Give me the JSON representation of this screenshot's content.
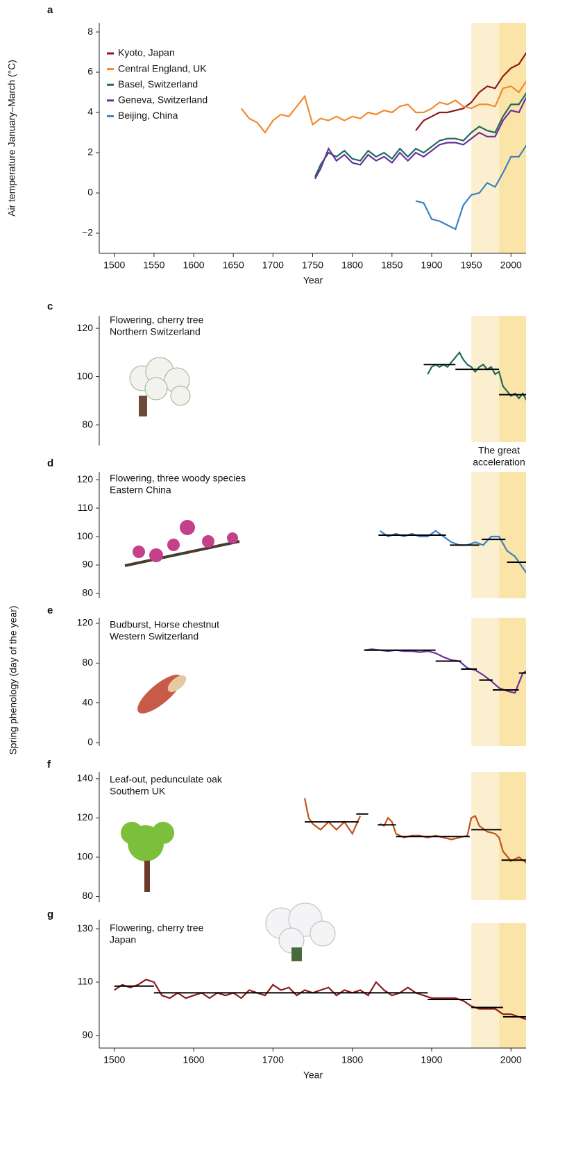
{
  "ylabel": "Spring phenology (day of the year)",
  "chart_data": [
    {
      "type": "line",
      "label": "a",
      "xlabel": "Year",
      "ylabel": "Air temperature January–March (°C)",
      "xlim": [
        1481,
        2019
      ],
      "ylim": [
        -3,
        8.45
      ],
      "xticks": [
        1500,
        1550,
        1600,
        1650,
        1700,
        1750,
        1800,
        1850,
        1900,
        1950,
        2000
      ],
      "yticks": [
        {
          "value": -2,
          "label": "−2"
        },
        0,
        2,
        4,
        6,
        8
      ],
      "periods": [
        {
          "range": [
            1950,
            1985
          ],
          "color": "#fcefcf"
        },
        {
          "range": [
            1985,
            2020
          ],
          "color": "#fbe4a8"
        }
      ],
      "series": [
        {
          "name": "Kyoto, Japan",
          "color": "#8b1a1a",
          "x": [
            1880,
            1890,
            1900,
            1910,
            1920,
            1930,
            1940,
            1950,
            1960,
            1970,
            1980,
            1990,
            2000,
            2010,
            2020
          ],
          "values": [
            3.1,
            3.6,
            3.8,
            4.0,
            4.0,
            4.1,
            4.2,
            4.5,
            5.0,
            5.3,
            5.2,
            5.8,
            6.2,
            6.4,
            7.0
          ]
        },
        {
          "name": "Central England, UK",
          "color": "#f28a2e",
          "x": [
            1660,
            1670,
            1680,
            1690,
            1700,
            1710,
            1720,
            1730,
            1740,
            1750,
            1760,
            1770,
            1780,
            1790,
            1800,
            1810,
            1820,
            1830,
            1840,
            1850,
            1860,
            1870,
            1880,
            1890,
            1900,
            1910,
            1920,
            1930,
            1940,
            1950,
            1960,
            1970,
            1980,
            1990,
            2000,
            2010,
            2020
          ],
          "values": [
            4.2,
            3.7,
            3.5,
            3.0,
            3.6,
            3.9,
            3.8,
            4.3,
            4.8,
            3.4,
            3.7,
            3.6,
            3.8,
            3.6,
            3.8,
            3.7,
            4.0,
            3.9,
            4.1,
            4.0,
            4.3,
            4.4,
            4.0,
            4.0,
            4.2,
            4.5,
            4.4,
            4.6,
            4.3,
            4.2,
            4.4,
            4.4,
            4.3,
            5.2,
            5.3,
            5.0,
            5.6
          ]
        },
        {
          "name": "Basel, Switzerland",
          "color": "#1e6b5a",
          "x": [
            1753,
            1760,
            1770,
            1780,
            1790,
            1800,
            1810,
            1820,
            1830,
            1840,
            1850,
            1860,
            1870,
            1880,
            1890,
            1900,
            1910,
            1920,
            1930,
            1940,
            1950,
            1960,
            1970,
            1980,
            1990,
            2000,
            2010,
            2020
          ],
          "values": [
            0.8,
            1.4,
            2.0,
            1.8,
            2.1,
            1.7,
            1.6,
            2.1,
            1.8,
            2.0,
            1.7,
            2.2,
            1.8,
            2.2,
            2.0,
            2.3,
            2.6,
            2.7,
            2.7,
            2.6,
            3.0,
            3.3,
            3.1,
            3.0,
            3.8,
            4.4,
            4.4,
            5.0
          ]
        },
        {
          "name": "Geneva, Switzerland",
          "color": "#6a2fa0",
          "x": [
            1753,
            1760,
            1770,
            1780,
            1790,
            1800,
            1810,
            1820,
            1830,
            1840,
            1850,
            1860,
            1870,
            1880,
            1890,
            1900,
            1910,
            1920,
            1930,
            1940,
            1950,
            1960,
            1970,
            1980,
            1990,
            2000,
            2010,
            2020
          ],
          "values": [
            0.7,
            1.2,
            2.2,
            1.6,
            1.9,
            1.5,
            1.4,
            1.9,
            1.6,
            1.8,
            1.5,
            2.0,
            1.6,
            2.0,
            1.8,
            2.1,
            2.4,
            2.5,
            2.5,
            2.4,
            2.7,
            3.0,
            2.8,
            2.8,
            3.6,
            4.1,
            4.0,
            4.8
          ]
        },
        {
          "name": "Beijing, China",
          "color": "#3a82c4",
          "x": [
            1880,
            1890,
            1900,
            1910,
            1920,
            1930,
            1940,
            1950,
            1960,
            1970,
            1980,
            1990,
            2000,
            2010,
            2020
          ],
          "values": [
            -0.4,
            -0.5,
            -1.3,
            -1.4,
            -1.6,
            -1.8,
            -0.6,
            -0.1,
            0.0,
            0.5,
            0.3,
            1.0,
            1.8,
            1.8,
            2.4
          ]
        }
      ]
    },
    {
      "type": "line",
      "label": "c",
      "title": [
        "Flowering, cherry tree",
        "Northern Switzerland"
      ],
      "annotation": [
        "The great",
        "acceleration"
      ],
      "xlim": [
        1481,
        2019
      ],
      "ylim": [
        71.4,
        125.2
      ],
      "yticks": [
        80,
        100,
        120
      ],
      "periods": [
        {
          "range": [
            1950,
            1985
          ],
          "color": "#fcefcf"
        },
        {
          "range": [
            1985,
            2020
          ],
          "color": "#fbe4a8"
        }
      ],
      "series": [
        {
          "color": "#1e6b5a",
          "x": [
            1895,
            1900,
            1905,
            1910,
            1915,
            1920,
            1925,
            1930,
            1935,
            1940,
            1945,
            1950,
            1955,
            1960,
            1965,
            1970,
            1975,
            1980,
            1985,
            1990,
            1995,
            2000,
            2005,
            2010,
            2015,
            2020
          ],
          "values": [
            101,
            104,
            105,
            104,
            105,
            104,
            106,
            108,
            110,
            107,
            105,
            104,
            102,
            104,
            105,
            103,
            104,
            101,
            102,
            96,
            94,
            92,
            93,
            91,
            93,
            90
          ]
        }
      ],
      "means": [
        {
          "x": [
            1890,
            1930
          ],
          "value": 105
        },
        {
          "x": [
            1930,
            1985
          ],
          "value": 103
        },
        {
          "x": [
            1985,
            2020
          ],
          "value": 92.5
        }
      ]
    },
    {
      "type": "line",
      "label": "d",
      "title": [
        "Flowering, three woody species",
        "Eastern China"
      ],
      "xlim": [
        1481,
        2019
      ],
      "ylim": [
        78.3,
        122.7
      ],
      "yticks": [
        80,
        90,
        100,
        110,
        120
      ],
      "periods": [
        {
          "range": [
            1950,
            1985
          ],
          "color": "#fcefcf"
        },
        {
          "range": [
            1985,
            2020
          ],
          "color": "#fbe4a8"
        }
      ],
      "series": [
        {
          "color": "#3a82c4",
          "x": [
            1835,
            1845,
            1855,
            1865,
            1875,
            1885,
            1895,
            1905,
            1915,
            1925,
            1935,
            1945,
            1955,
            1965,
            1975,
            1985,
            1995,
            2005,
            2015,
            2020
          ],
          "values": [
            102,
            100,
            101,
            100,
            101,
            100,
            100,
            102,
            100,
            98,
            97,
            97,
            98,
            97,
            100,
            100,
            95,
            93,
            89,
            87
          ]
        }
      ],
      "means": [
        {
          "x": [
            1833,
            1918
          ],
          "value": 100.5
        },
        {
          "x": [
            1923,
            1960
          ],
          "value": 97
        },
        {
          "x": [
            1963,
            1993
          ],
          "value": 99
        },
        {
          "x": [
            1995,
            2020
          ],
          "value": 91
        }
      ]
    },
    {
      "type": "line",
      "label": "e",
      "title": [
        "Budburst, Horse chestnut",
        "Western Switzerland"
      ],
      "xlim": [
        1481,
        2019
      ],
      "ylim": [
        -3.5,
        125.6
      ],
      "yticks": [
        0,
        40,
        80,
        120
      ],
      "periods": [
        {
          "range": [
            1950,
            1985
          ],
          "color": "#fcefcf"
        },
        {
          "range": [
            1985,
            2020
          ],
          "color": "#fbe4a8"
        }
      ],
      "series": [
        {
          "color": "#6a2fa0",
          "x": [
            1815,
            1825,
            1835,
            1845,
            1855,
            1865,
            1875,
            1885,
            1895,
            1905,
            1915,
            1925,
            1935,
            1945,
            1955,
            1965,
            1975,
            1985,
            1995,
            2005,
            2015,
            2020
          ],
          "values": [
            93,
            94,
            93,
            92,
            93,
            92,
            92,
            91,
            92,
            90,
            86,
            83,
            82,
            75,
            73,
            68,
            62,
            55,
            52,
            50,
            70,
            72
          ]
        }
      ],
      "means": [
        {
          "x": [
            1815,
            1905
          ],
          "value": 93
        },
        {
          "x": [
            1905,
            1937
          ],
          "value": 82
        },
        {
          "x": [
            1937,
            1957
          ],
          "value": 74
        },
        {
          "x": [
            1960,
            1977
          ],
          "value": 63
        },
        {
          "x": [
            1977,
            2010
          ],
          "value": 53
        },
        {
          "x": [
            2010,
            2020
          ],
          "value": 70
        }
      ]
    },
    {
      "type": "line",
      "label": "f",
      "title": [
        "Leaf-out, pedunculate oak",
        "Southern UK"
      ],
      "xlim": [
        1481,
        2019
      ],
      "ylim": [
        77,
        143.5
      ],
      "yticks": [
        80,
        100,
        120,
        140
      ],
      "periods": [
        {
          "range": [
            1950,
            1985
          ],
          "color": "#fcefcf"
        },
        {
          "range": [
            1985,
            2020
          ],
          "color": "#fbe4a8"
        }
      ],
      "series": [
        {
          "color": "#c0531d",
          "x": [
            1740,
            1745,
            1750,
            1760,
            1770,
            1780,
            1790,
            1800,
            1810,
            1820,
            1835,
            1840,
            1845,
            1850,
            1855,
            1865,
            1875,
            1885,
            1895,
            1905,
            1915,
            1925,
            1935,
            1945,
            1950,
            1955,
            1960,
            1970,
            1980,
            1985,
            1990,
            2000,
            2010,
            2020
          ],
          "values": [
            130,
            120,
            117,
            114,
            118,
            114,
            118,
            112,
            121,
            null,
            117,
            116,
            120,
            118,
            112,
            110,
            111,
            111,
            110,
            111,
            110,
            109,
            110,
            111,
            120,
            121,
            116,
            113,
            112,
            110,
            103,
            98,
            100,
            97
          ]
        }
      ],
      "means": [
        {
          "x": [
            1740,
            1808
          ],
          "value": 118
        },
        {
          "x": [
            1805,
            1820
          ],
          "value": 122
        },
        {
          "x": [
            1832,
            1855
          ],
          "value": 116.5
        },
        {
          "x": [
            1855,
            1948
          ],
          "value": 110.5
        },
        {
          "x": [
            1950,
            1988
          ],
          "value": 114
        },
        {
          "x": [
            1988,
            2020
          ],
          "value": 98.5
        }
      ]
    },
    {
      "type": "line",
      "label": "g",
      "title": [
        "Flowering, cherry tree",
        "Japan"
      ],
      "xlabel": "Year",
      "xlim": [
        1481,
        2019
      ],
      "ylim": [
        85.3,
        133.4
      ],
      "yticks": [
        90,
        110,
        130
      ],
      "xticks": [
        1500,
        1600,
        1700,
        1800,
        1900,
        2000
      ],
      "periods": [
        {
          "range": [
            1950,
            1985
          ],
          "color": "#fcefcf"
        },
        {
          "range": [
            1985,
            2020
          ],
          "color": "#fbe4a8"
        }
      ],
      "series": [
        {
          "color": "#8b1a1a",
          "x": [
            1500,
            1510,
            1520,
            1530,
            1540,
            1550,
            1560,
            1570,
            1580,
            1590,
            1600,
            1610,
            1620,
            1630,
            1640,
            1650,
            1660,
            1670,
            1680,
            1690,
            1700,
            1710,
            1720,
            1730,
            1740,
            1750,
            1760,
            1770,
            1780,
            1790,
            1800,
            1810,
            1820,
            1830,
            1840,
            1850,
            1860,
            1870,
            1880,
            1890,
            1900,
            1910,
            1920,
            1930,
            1940,
            1950,
            1960,
            1970,
            1980,
            1990,
            2000,
            2010,
            2020
          ],
          "values": [
            107,
            109,
            108,
            109,
            111,
            110,
            105,
            104,
            106,
            104,
            105,
            106,
            104,
            106,
            105,
            106,
            104,
            107,
            106,
            105,
            109,
            107,
            108,
            105,
            107,
            106,
            107,
            108,
            105,
            107,
            106,
            107,
            105,
            110,
            107,
            105,
            106,
            108,
            106,
            105,
            104,
            104,
            104,
            104,
            103,
            101,
            100,
            100,
            100,
            98,
            98,
            97,
            96
          ]
        }
      ],
      "means": [
        {
          "x": [
            1500,
            1550
          ],
          "value": 108.5
        },
        {
          "x": [
            1550,
            1895
          ],
          "value": 106
        },
        {
          "x": [
            1895,
            1950
          ],
          "value": 103.5
        },
        {
          "x": [
            1950,
            1990
          ],
          "value": 100.5
        },
        {
          "x": [
            1990,
            2020
          ],
          "value": 97
        }
      ]
    }
  ]
}
